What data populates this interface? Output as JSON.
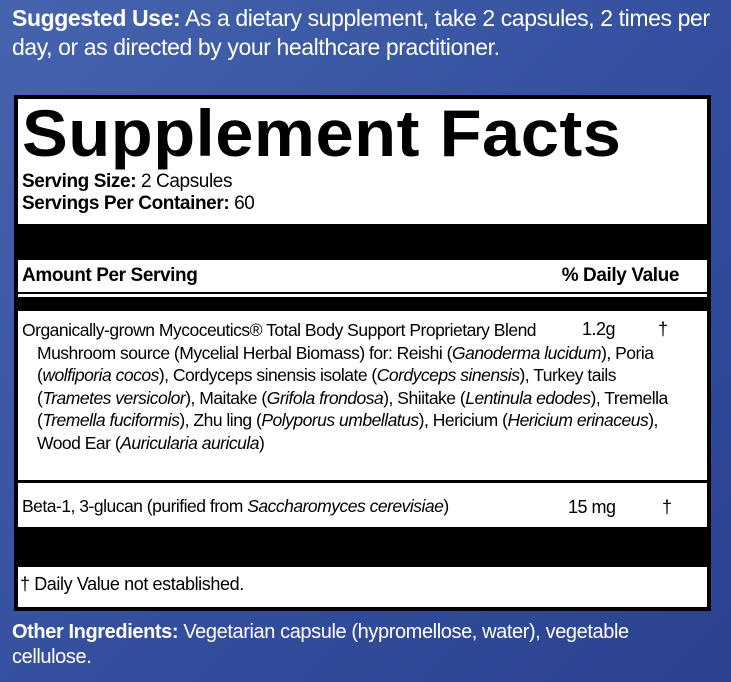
{
  "suggested_use": {
    "label": "Suggested Use:",
    "text": " As a dietary supplement, take 2 capsules, 2 times per day, or as directed by your healthcare practitioner."
  },
  "facts": {
    "title": "Supplement Facts",
    "serving_size_label": "Serving Size:",
    "serving_size": " 2 Capsules",
    "servings_label": "Servings Per Container:",
    "servings": " 60",
    "amount_header": "Amount Per Serving",
    "dv_header": "% Daily Value",
    "items": [
      {
        "name": "Organically-grown Mycoceutics® Total Body Support Proprietary Blend",
        "amount": "1.2g",
        "dv": "†",
        "description": [
          {
            "t": "Mushroom source (Mycelial Herbal Biomass) for: Reishi ("
          },
          {
            "t": "Ganoderma lucidum",
            "i": true
          },
          {
            "t": "), Poria ("
          },
          {
            "t": "wolfiporia cocos",
            "i": true
          },
          {
            "t": "), Cordyceps sinensis isolate ("
          },
          {
            "t": "Cordyceps sinensis",
            "i": true
          },
          {
            "t": "), Turkey tails ("
          },
          {
            "t": "Trametes versicolor",
            "i": true
          },
          {
            "t": "), Maitake ("
          },
          {
            "t": "Grifola frondosa",
            "i": true
          },
          {
            "t": "), Shiitake ("
          },
          {
            "t": "Lentinula edodes",
            "i": true
          },
          {
            "t": "), Tremella ("
          },
          {
            "t": "Tremella fuciformis",
            "i": true
          },
          {
            "t": "), Zhu ling ("
          },
          {
            "t": "Polyporus umbellatus",
            "i": true
          },
          {
            "t": "), Hericium ("
          },
          {
            "t": "Hericium erinaceus",
            "i": true
          },
          {
            "t": "), Wood Ear ("
          },
          {
            "t": "Auricularia auricula",
            "i": true
          },
          {
            "t": ")"
          }
        ]
      },
      {
        "name_prefix": "Beta-1, 3-glucan (purified from ",
        "name_italic": "Saccharomyces cerevisiae",
        "name_suffix": ")",
        "amount": "15 mg",
        "dv": "†"
      }
    ],
    "footnote": "† Daily Value not established."
  },
  "other_ingredients": {
    "label": "Other Ingredients:",
    "text": " Vegetarian capsule (hypromellose, water), vegetable cellulose."
  }
}
